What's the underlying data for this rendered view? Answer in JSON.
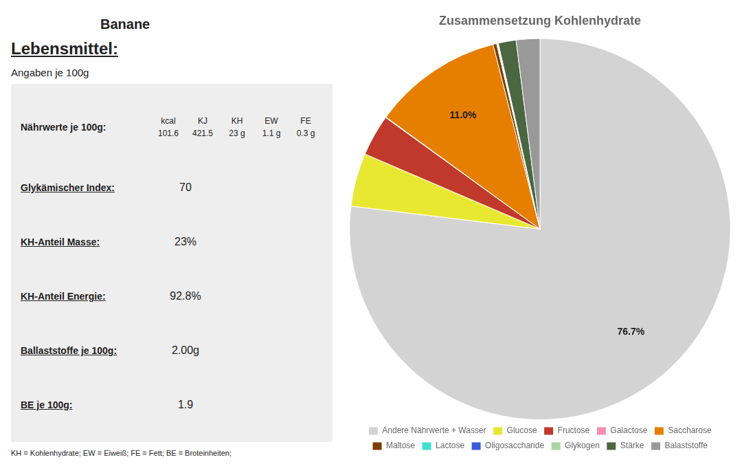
{
  "chart_data": {
    "type": "pie",
    "title": "Zusammensetzung Kohlenhydrate",
    "categories": [
      "Andere Nährwerte + Wasser",
      "Glucose",
      "Fructose",
      "Galactose",
      "Saccharose",
      "Maltose",
      "Lactose",
      "Oligosaccharide",
      "Glykogen",
      "Stärke",
      "Balaststoffe"
    ],
    "values": [
      76.7,
      4.5,
      3.5,
      0.05,
      11.0,
      0.3,
      0.05,
      0.05,
      0.05,
      1.5,
      2.0
    ],
    "colors": [
      "#d3d3d3",
      "#e8e832",
      "#c0392b",
      "#f48fb1",
      "#e67e00",
      "#7b3f00",
      "#40e0d0",
      "#3b5bdb",
      "#a8d5a2",
      "#4a6741",
      "#999999"
    ],
    "data_labels": true,
    "value_labels": [
      "76.7%",
      null,
      null,
      null,
      "11.0%",
      null,
      null,
      null,
      null,
      null,
      null
    ],
    "legend": "bottom",
    "annotations": [
      "Banane",
      "Lebensmittel:",
      "Angaben je 100g",
      "Nährwerte je 100g:",
      "kcal",
      "101.6",
      "KJ",
      "421.5",
      "KH",
      "23 g",
      "EW",
      "1.1 g",
      "FE",
      "0.3 g",
      "Glykämischer Index:",
      "70",
      "KH-Anteil Masse:",
      "23%",
      "KH-Anteil Energie:",
      "92.8%",
      "Ballaststoffe je 100g:",
      "2.00g",
      "BE je 100g:",
      "1.9",
      "KH = Kohlenhydrate; EW = Eiweiß; FE = Fett; BE = Broteinheiten;"
    ]
  }
}
